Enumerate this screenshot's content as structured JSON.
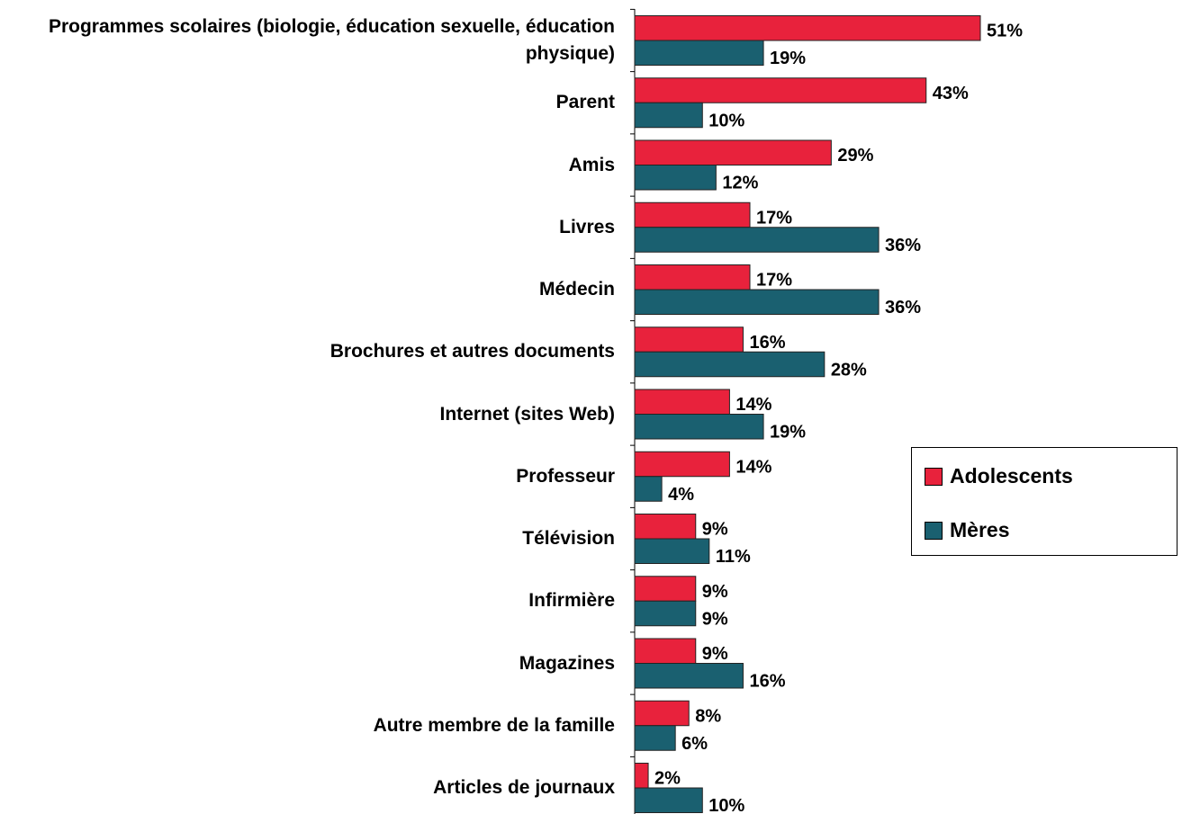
{
  "chart_data": {
    "type": "bar",
    "orientation": "horizontal",
    "categories": [
      "Programmes scolaires (biologie, éducation sexuelle, éducation physique)",
      "Parent",
      "Amis",
      "Livres",
      "Médecin",
      "Brochures et autres documents",
      "Internet (sites Web)",
      "Professeur",
      "Télévision",
      "Infirmière",
      "Magazines",
      "Autre membre de la famille",
      "Articles de journaux"
    ],
    "series": [
      {
        "name": "Adolescents",
        "color": "#e8223c",
        "values": [
          51,
          43,
          29,
          17,
          17,
          16,
          14,
          14,
          9,
          9,
          9,
          8,
          2
        ],
        "value_labels": [
          "51%",
          "43%",
          "29%",
          "17%",
          "17%",
          "16%",
          "14%",
          "14%",
          "9%",
          "9%",
          "9%",
          "8%",
          "2%"
        ]
      },
      {
        "name": "Mères",
        "color": "#1a6070",
        "values": [
          19,
          10,
          12,
          36,
          36,
          28,
          19,
          4,
          11,
          9,
          16,
          6,
          10
        ],
        "value_labels": [
          "19%",
          "10%",
          "12%",
          "36%",
          "36%",
          "28%",
          "19%",
          "4%",
          "11%",
          "9%",
          "16%",
          "6%",
          "10%"
        ]
      }
    ],
    "legend": "right"
  }
}
